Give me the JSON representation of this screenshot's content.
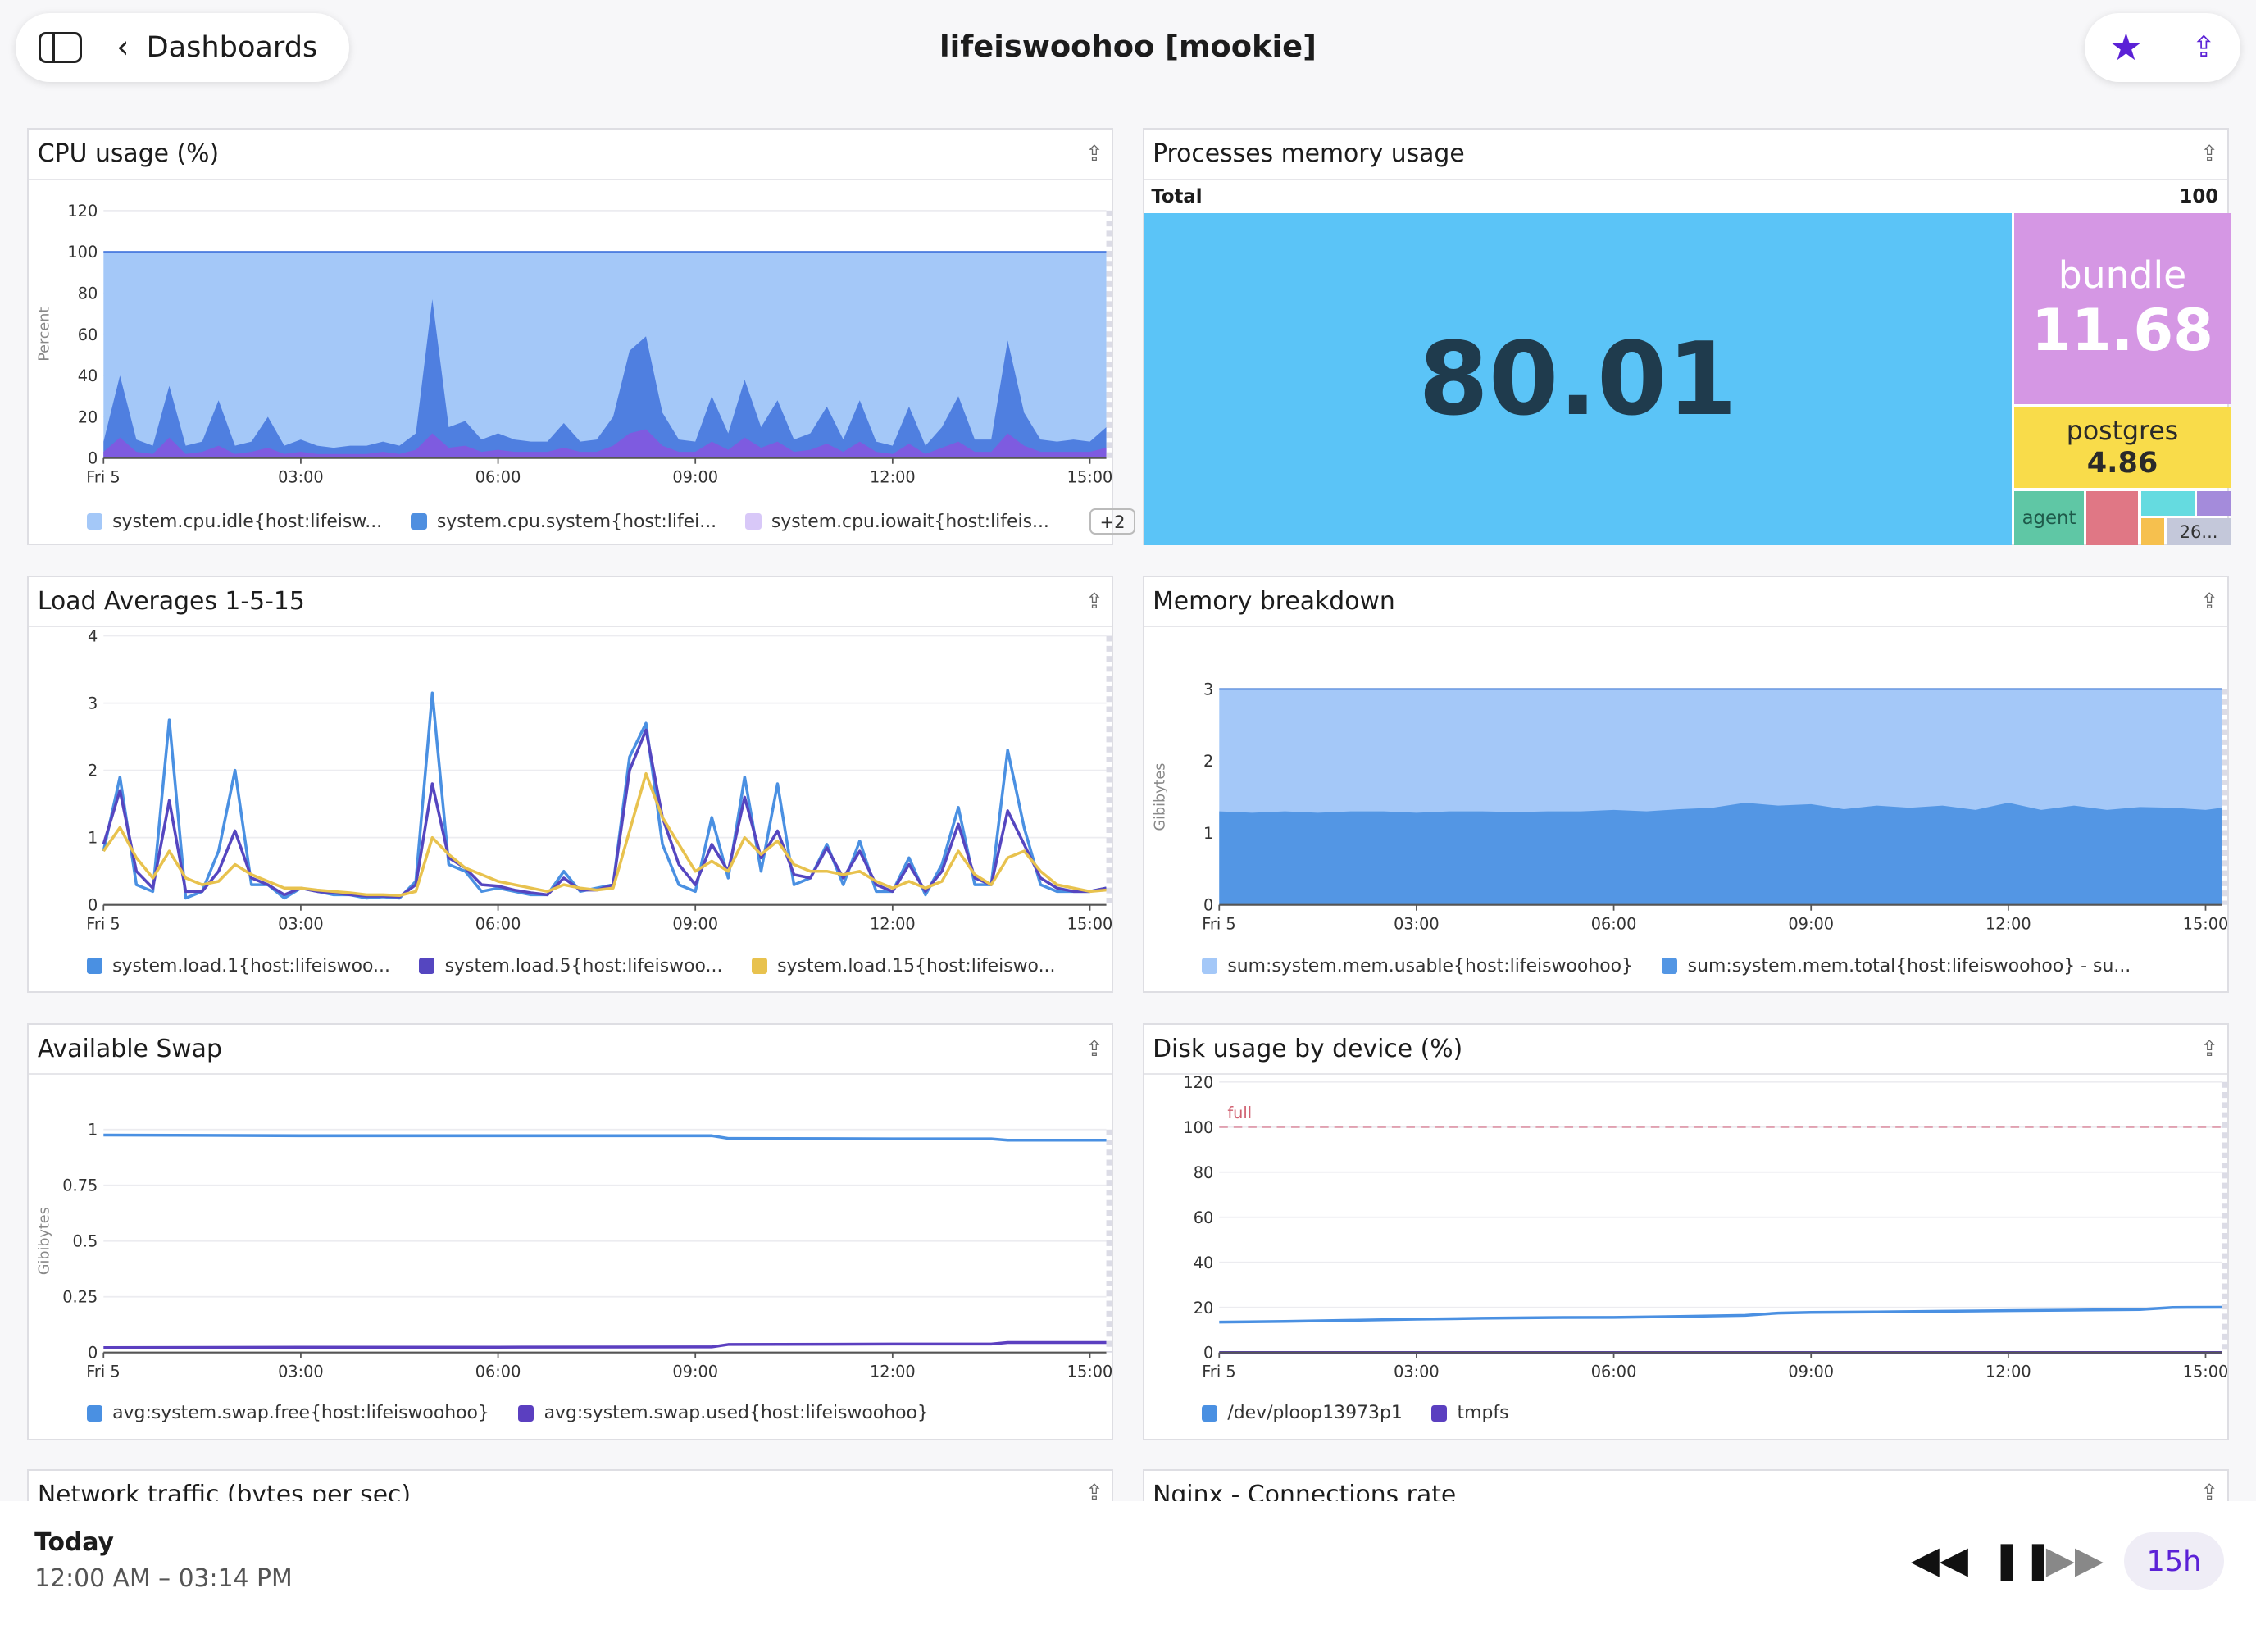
{
  "header": {
    "back_label": "Dashboards",
    "title": "lifeiswoohoo [mookie]",
    "star_icon": "star-icon",
    "share_icon": "share-icon"
  },
  "colors": {
    "accent": "#5b21d6"
  },
  "x_ticks": [
    "Fri 5",
    "03:00",
    "06:00",
    "09:00",
    "12:00",
    "15:00"
  ],
  "panels": {
    "cpu": {
      "title": "CPU usage (%)",
      "legend": [
        "system.cpu.idle{host:lifeisw...",
        "system.cpu.system{host:lifei...",
        "system.cpu.iowait{host:lifeis..."
      ],
      "more": "+2"
    },
    "mem_proc": {
      "title": "Processes memory usage",
      "total_label": "Total",
      "total_value": "100",
      "cells": [
        {
          "name": "",
          "value": "80.01",
          "color": "#5bc4f7"
        },
        {
          "name": "bundle",
          "value": "11.68",
          "color": "#d597e4"
        },
        {
          "name": "postgres",
          "value": "4.86",
          "color": "#f9dc4a"
        },
        {
          "name": "agent",
          "value": "",
          "color": "#5fc7a5"
        },
        {
          "name": "",
          "value": "",
          "color": "#e07785"
        },
        {
          "name": "",
          "value": "",
          "color": "#65dbe0"
        },
        {
          "name": "",
          "value": "",
          "color": "#a48bdb"
        },
        {
          "name": "",
          "value": "",
          "color": "#f6c04e"
        },
        {
          "name": "26...",
          "value": "",
          "color": "#c4c8da"
        }
      ]
    },
    "load": {
      "title": "Load Averages 1-5-15",
      "legend": [
        "system.load.1{host:lifeiswoo...",
        "system.load.5{host:lifeiswoo...",
        "system.load.15{host:lifeiswo..."
      ]
    },
    "mem": {
      "title": "Memory breakdown",
      "legend": [
        "sum:system.mem.usable{host:lifeiswoohoo}",
        "sum:system.mem.total{host:lifeiswoohoo} - su..."
      ]
    },
    "swap": {
      "title": "Available Swap",
      "legend": [
        "avg:system.swap.free{host:lifeiswoohoo}",
        "avg:system.swap.used{host:lifeiswoohoo}"
      ]
    },
    "disk": {
      "title": "Disk usage by device (%)",
      "legend": [
        "/dev/ploop13973p1",
        "tmpfs"
      ],
      "marker_label": "full"
    },
    "net": {
      "title": "Network traffic (bytes per sec)"
    },
    "nginx": {
      "title": "Nginx - Connections rate"
    }
  },
  "chart_data": [
    {
      "id": "cpu",
      "type": "area",
      "ylabel": "Percent",
      "ylim": [
        0,
        120
      ],
      "yticks": [
        0,
        20,
        40,
        60,
        80,
        100,
        120
      ],
      "stacked": true,
      "x": [
        "00:00",
        "00:15",
        "00:30",
        "00:45",
        "01:00",
        "01:15",
        "01:30",
        "01:45",
        "02:00",
        "02:15",
        "02:30",
        "02:45",
        "03:00",
        "03:15",
        "03:30",
        "03:45",
        "04:00",
        "04:15",
        "04:30",
        "04:45",
        "05:00",
        "05:15",
        "05:30",
        "05:45",
        "06:00",
        "06:15",
        "06:30",
        "06:45",
        "07:00",
        "07:15",
        "07:30",
        "07:45",
        "08:00",
        "08:15",
        "08:30",
        "08:45",
        "09:00",
        "09:15",
        "09:30",
        "09:45",
        "10:00",
        "10:15",
        "10:30",
        "10:45",
        "11:00",
        "11:15",
        "11:30",
        "11:45",
        "12:00",
        "12:15",
        "12:30",
        "12:45",
        "13:00",
        "13:15",
        "13:30",
        "13:45",
        "14:00",
        "14:15",
        "14:30",
        "14:45",
        "15:00",
        "15:15"
      ],
      "series": [
        {
          "color": "#4f7fe0",
          "values": [
            5,
            30,
            6,
            4,
            25,
            4,
            5,
            22,
            4,
            5,
            15,
            4,
            6,
            4,
            3,
            4,
            4,
            5,
            4,
            8,
            65,
            10,
            12,
            6,
            8,
            6,
            5,
            5,
            12,
            5,
            6,
            14,
            40,
            45,
            16,
            6,
            5,
            22,
            8,
            28,
            10,
            20,
            6,
            8,
            18,
            6,
            20,
            5,
            4,
            18,
            4,
            10,
            22,
            6,
            6,
            45,
            16,
            6,
            5,
            6,
            5,
            10
          ]
        },
        {
          "color": "#7e5be0",
          "values": [
            3,
            10,
            3,
            2,
            10,
            2,
            3,
            6,
            2,
            3,
            5,
            2,
            3,
            2,
            2,
            2,
            2,
            3,
            2,
            4,
            12,
            5,
            6,
            3,
            4,
            3,
            3,
            3,
            5,
            3,
            3,
            6,
            12,
            14,
            6,
            3,
            3,
            8,
            4,
            10,
            5,
            8,
            3,
            4,
            7,
            3,
            8,
            3,
            2,
            7,
            2,
            5,
            8,
            3,
            3,
            12,
            6,
            3,
            3,
            3,
            3,
            5
          ]
        },
        {
          "color": "#a4c8f8",
          "values": "remainder-to-100"
        }
      ]
    },
    {
      "id": "load",
      "type": "line",
      "ylim": [
        0,
        4
      ],
      "yticks": [
        0,
        1,
        2,
        3,
        4
      ],
      "series": [
        {
          "color": "#4a90e2",
          "values": [
            0.8,
            1.9,
            0.3,
            0.2,
            2.75,
            0.1,
            0.2,
            0.8,
            2.0,
            0.3,
            0.3,
            0.1,
            0.25,
            0.2,
            0.15,
            0.15,
            0.1,
            0.12,
            0.1,
            0.35,
            3.15,
            0.6,
            0.5,
            0.2,
            0.25,
            0.2,
            0.15,
            0.15,
            0.5,
            0.2,
            0.25,
            0.3,
            2.2,
            2.7,
            0.9,
            0.3,
            0.2,
            1.3,
            0.4,
            1.9,
            0.5,
            1.8,
            0.3,
            0.4,
            0.9,
            0.3,
            0.95,
            0.2,
            0.2,
            0.7,
            0.15,
            0.6,
            1.45,
            0.3,
            0.3,
            2.3,
            1.15,
            0.3,
            0.2,
            0.2,
            0.2,
            0.25
          ]
        },
        {
          "color": "#5546c0",
          "values": [
            0.9,
            1.7,
            0.5,
            0.25,
            1.55,
            0.2,
            0.2,
            0.5,
            1.1,
            0.4,
            0.3,
            0.15,
            0.25,
            0.2,
            0.18,
            0.15,
            0.13,
            0.13,
            0.12,
            0.3,
            1.8,
            0.7,
            0.55,
            0.3,
            0.28,
            0.22,
            0.18,
            0.15,
            0.4,
            0.22,
            0.22,
            0.3,
            2.0,
            2.6,
            1.3,
            0.6,
            0.3,
            0.9,
            0.5,
            1.6,
            0.7,
            1.1,
            0.45,
            0.4,
            0.85,
            0.4,
            0.8,
            0.3,
            0.2,
            0.6,
            0.2,
            0.5,
            1.2,
            0.4,
            0.3,
            1.4,
            0.9,
            0.4,
            0.25,
            0.2,
            0.2,
            0.25
          ]
        },
        {
          "color": "#e8c24e",
          "values": [
            0.8,
            1.15,
            0.7,
            0.4,
            0.8,
            0.4,
            0.3,
            0.35,
            0.6,
            0.45,
            0.35,
            0.25,
            0.25,
            0.22,
            0.2,
            0.18,
            0.15,
            0.15,
            0.14,
            0.2,
            1.0,
            0.75,
            0.55,
            0.45,
            0.35,
            0.3,
            0.25,
            0.2,
            0.3,
            0.25,
            0.22,
            0.25,
            1.1,
            1.95,
            1.3,
            0.9,
            0.5,
            0.65,
            0.5,
            1.0,
            0.75,
            0.95,
            0.6,
            0.5,
            0.5,
            0.45,
            0.5,
            0.35,
            0.25,
            0.35,
            0.25,
            0.35,
            0.8,
            0.45,
            0.3,
            0.7,
            0.8,
            0.5,
            0.3,
            0.25,
            0.2,
            0.22
          ]
        }
      ]
    },
    {
      "id": "mem",
      "type": "area",
      "ylabel": "Gibibytes",
      "ylim": [
        0,
        3
      ],
      "yticks": [
        0,
        1,
        2,
        3
      ],
      "x": [
        "00:00",
        "00:30",
        "01:00",
        "01:30",
        "02:00",
        "02:30",
        "03:00",
        "03:30",
        "04:00",
        "04:30",
        "05:00",
        "05:30",
        "06:00",
        "06:30",
        "07:00",
        "07:30",
        "08:00",
        "08:30",
        "09:00",
        "09:30",
        "10:00",
        "10:30",
        "11:00",
        "11:30",
        "12:00",
        "12:30",
        "13:00",
        "13:30",
        "14:00",
        "14:30",
        "15:00",
        "15:15"
      ],
      "series": [
        {
          "color": "#a4c8f8",
          "values": [
            3,
            3,
            3,
            3,
            3,
            3,
            3,
            3,
            3,
            3,
            3,
            3,
            3,
            3,
            3,
            3,
            3,
            3,
            3,
            3,
            3,
            3,
            3,
            3,
            3,
            3,
            3,
            3,
            3,
            3,
            3,
            3
          ]
        },
        {
          "color": "#5396e4",
          "values": [
            1.3,
            1.28,
            1.3,
            1.28,
            1.3,
            1.3,
            1.28,
            1.3,
            1.3,
            1.29,
            1.3,
            1.3,
            1.32,
            1.3,
            1.33,
            1.35,
            1.42,
            1.38,
            1.4,
            1.33,
            1.38,
            1.35,
            1.38,
            1.32,
            1.42,
            1.32,
            1.38,
            1.32,
            1.36,
            1.35,
            1.32,
            1.35
          ]
        }
      ]
    },
    {
      "id": "swap",
      "type": "line",
      "ylabel": "Gibibytes",
      "ylim": [
        0,
        1
      ],
      "yticks": [
        0,
        0.25,
        0.5,
        0.75,
        1
      ],
      "x": [
        "00:00",
        "03:00",
        "06:00",
        "09:00",
        "09:15",
        "09:30",
        "12:00",
        "13:30",
        "13:45",
        "15:15"
      ],
      "series": [
        {
          "color": "#4a90e2",
          "values": [
            0.975,
            0.972,
            0.972,
            0.972,
            0.972,
            0.96,
            0.958,
            0.958,
            0.952,
            0.952
          ]
        },
        {
          "color": "#5b3fc0",
          "values": [
            0.022,
            0.024,
            0.024,
            0.025,
            0.025,
            0.036,
            0.038,
            0.038,
            0.045,
            0.045
          ]
        }
      ]
    },
    {
      "id": "disk",
      "type": "line",
      "ylim": [
        0,
        120
      ],
      "yticks": [
        0,
        20,
        40,
        60,
        80,
        100,
        120
      ],
      "marker": {
        "value": 100,
        "color": "#e0a0b0"
      },
      "x": [
        "00:00",
        "01:00",
        "02:00",
        "03:00",
        "04:00",
        "05:00",
        "06:00",
        "07:00",
        "08:00",
        "08:30",
        "09:00",
        "10:00",
        "11:00",
        "12:00",
        "13:00",
        "14:00",
        "14:30",
        "15:15"
      ],
      "series": [
        {
          "color": "#4a90e2",
          "values": [
            13.5,
            13.8,
            14.3,
            14.8,
            15.2,
            15.5,
            15.6,
            16,
            16.5,
            17.5,
            17.8,
            18,
            18.3,
            18.6,
            18.8,
            19.1,
            20,
            20.1
          ]
        },
        {
          "color": "#5b3fc0",
          "values": [
            0,
            0,
            0,
            0,
            0,
            0,
            0,
            0,
            0,
            0,
            0,
            0,
            0,
            0,
            0,
            0,
            0,
            0
          ]
        }
      ]
    }
  ],
  "bottom": {
    "day": "Today",
    "range": "12:00 AM – 03:14 PM",
    "window": "15h"
  }
}
